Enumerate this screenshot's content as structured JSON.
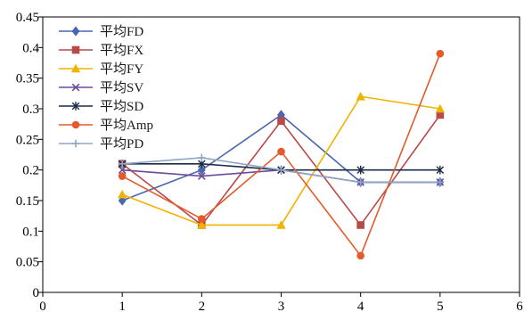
{
  "chart_data": {
    "type": "line",
    "title": "",
    "xlabel": "",
    "ylabel": "",
    "xlim": [
      0,
      6
    ],
    "ylim": [
      0,
      0.45
    ],
    "x_ticks": [
      "0",
      "1",
      "2",
      "3",
      "4",
      "5",
      "6"
    ],
    "y_ticks": [
      "0",
      "0.05",
      "0.1",
      "0.15",
      "0.2",
      "0.25",
      "0.3",
      "0.35",
      "0.4",
      "0.45"
    ],
    "grid": false,
    "legend_position": "top-left",
    "x": [
      1,
      2,
      3,
      4,
      5
    ],
    "series": [
      {
        "name": "平均FD",
        "color": "#4a67b0",
        "marker": "diamond",
        "values": [
          0.15,
          0.2,
          0.29,
          0.18,
          0.18
        ]
      },
      {
        "name": "平均FX",
        "color": "#b84a4a",
        "marker": "square",
        "values": [
          0.21,
          0.11,
          0.28,
          0.11,
          0.29
        ]
      },
      {
        "name": "平均FY",
        "color": "#f0b400",
        "marker": "triangle",
        "values": [
          0.16,
          0.11,
          0.11,
          0.32,
          0.3
        ]
      },
      {
        "name": "平均SV",
        "color": "#6b4b9a",
        "marker": "x",
        "values": [
          0.2,
          0.19,
          0.2,
          0.18,
          0.18
        ]
      },
      {
        "name": "平均SD",
        "color": "#1a2b4a",
        "marker": "star",
        "values": [
          0.21,
          0.21,
          0.2,
          0.2,
          0.2
        ]
      },
      {
        "name": "平均Amp",
        "color": "#e55a2a",
        "marker": "circle",
        "values": [
          0.19,
          0.12,
          0.23,
          0.06,
          0.39
        ]
      },
      {
        "name": "平均PD",
        "color": "#8fa6c5",
        "marker": "plus",
        "values": [
          0.21,
          0.22,
          0.2,
          0.18,
          0.18
        ]
      }
    ]
  }
}
